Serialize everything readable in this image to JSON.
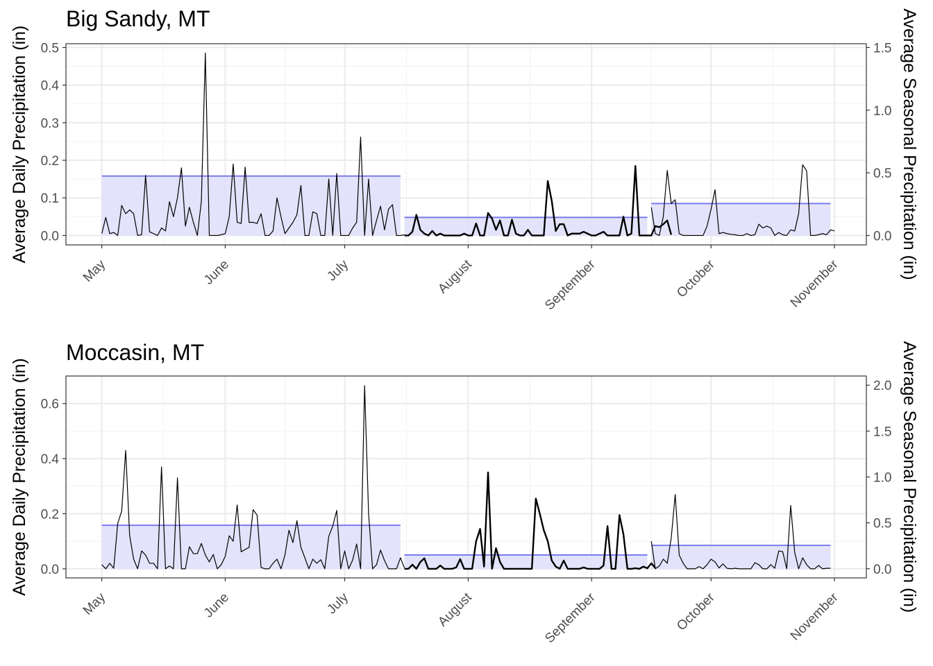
{
  "chart_data": [
    {
      "type": "line",
      "title": "Big Sandy, MT",
      "ylabel": "Average Daily Precipitation (in)",
      "y2label": "Average Seasonal Precipitation (in)",
      "ylim": [
        -0.025,
        0.51
      ],
      "y2lim": [
        -0.075,
        1.53
      ],
      "yticks": [
        0.0,
        0.1,
        0.2,
        0.3,
        0.4,
        0.5
      ],
      "y2ticks": [
        0.0,
        0.5,
        1.0,
        1.5
      ],
      "ytick_labels": [
        "0.0",
        "0.1",
        "0.2",
        "0.3",
        "0.4",
        "0.5"
      ],
      "y2tick_labels": [
        "0.0",
        "0.5",
        "1.0",
        "1.5"
      ],
      "xlim": [
        "2021-04-22",
        "2021-11-09"
      ],
      "x_breaks": [
        "2021-05-01",
        "2021-06-01",
        "2021-07-01",
        "2021-08-01",
        "2021-09-01",
        "2021-10-01",
        "2021-11-01"
      ],
      "x_labels": [
        "May",
        "June",
        "July",
        "August",
        "September",
        "October",
        "November"
      ],
      "grid": true,
      "seasons": [
        {
          "start": "2021-05-01",
          "end": "2021-07-15",
          "value": 0.158,
          "fill": "#e0e0fb",
          "stroke": "#7b7bef"
        },
        {
          "start": "2021-07-16",
          "end": "2021-09-15",
          "value": 0.048,
          "fill": "#e0e0fb",
          "stroke": "#7b7bef"
        },
        {
          "start": "2021-09-16",
          "end": "2021-10-31",
          "value": 0.085,
          "fill": "#e0e0fb",
          "stroke": "#7b7bef"
        }
      ],
      "series": [
        {
          "start": "2021-05-01",
          "width": 1.2,
          "values": [
            0.005,
            0.048,
            0.005,
            0.008,
            0.0,
            0.08,
            0.058,
            0.068,
            0.058,
            0.0,
            0.002,
            0.16,
            0.01,
            0.005,
            0.0,
            0.02,
            0.012,
            0.09,
            0.05,
            0.1,
            0.18,
            0.025,
            0.075,
            0.035,
            0.0,
            0.09,
            0.485,
            0.0,
            0.0,
            0.0,
            0.002,
            0.005,
            0.05,
            0.19,
            0.035,
            0.032,
            0.182,
            0.035,
            0.035,
            0.032,
            0.058,
            0.0,
            0.0,
            0.012,
            0.1,
            0.05,
            0.005,
            0.02,
            0.035,
            0.055,
            0.133,
            0.0,
            0.0,
            0.063,
            0.058,
            0.0,
            0.0,
            0.15,
            0.0,
            0.165,
            0.0,
            0.0,
            0.0,
            0.02,
            0.035,
            0.262,
            0.0,
            0.15,
            0.0,
            0.04,
            0.078,
            0.015,
            0.07,
            0.082,
            0.0,
            0.0,
            0.002
          ]
        },
        {
          "start": "2021-07-16",
          "width": 2.4,
          "values": [
            0.0,
            0.0,
            0.01,
            0.055,
            0.015,
            0.005,
            0.0,
            0.012,
            0.0,
            0.005,
            0.0,
            0.0,
            0.0,
            0.0,
            0.0,
            0.005,
            0.0,
            0.0,
            0.032,
            0.0,
            0.0,
            0.06,
            0.045,
            0.015,
            0.04,
            0.0,
            0.0,
            0.042,
            0.005,
            0.0,
            0.0,
            0.015,
            0.0,
            0.0,
            0.0,
            0.0,
            0.145,
            0.092,
            0.012,
            0.03,
            0.03,
            0.0,
            0.005,
            0.005,
            0.005,
            0.01,
            0.005,
            0.0,
            0.0,
            0.005,
            0.01,
            0.0,
            0.0,
            0.0,
            0.0,
            0.05,
            0.0,
            0.005,
            0.185,
            0.0,
            0.0,
            0.0,
            0.0,
            0.025,
            0.022,
            0.03,
            0.04,
            0.002
          ]
        },
        {
          "start": "2021-09-16",
          "width": 1.2,
          "values": [
            0.075,
            0.005,
            0.0,
            0.05,
            0.173,
            0.085,
            0.095,
            0.005,
            0.0,
            0.0,
            0.0,
            0.0,
            0.0,
            0.0,
            0.025,
            0.07,
            0.122,
            0.005,
            0.008,
            0.005,
            0.003,
            0.002,
            0.0,
            0.0,
            0.005,
            0.0,
            0.002,
            0.03,
            0.02,
            0.025,
            0.02,
            0.0,
            0.008,
            0.002,
            0.0,
            0.015,
            0.012,
            0.058,
            0.188,
            0.172,
            0.0,
            0.0,
            0.002,
            0.005,
            0.002,
            0.015,
            0.012
          ]
        }
      ]
    },
    {
      "type": "line",
      "title": "Moccasin, MT",
      "ylabel": "Average Daily Precipitation (in)",
      "y2label": "Average Seasonal Precipitation (in)",
      "ylim": [
        -0.033,
        0.7
      ],
      "y2lim": [
        -0.1,
        2.1
      ],
      "yticks": [
        0.0,
        0.2,
        0.4,
        0.6
      ],
      "y2ticks": [
        0.0,
        0.5,
        1.0,
        1.5,
        2.0
      ],
      "ytick_labels": [
        "0.0",
        "0.2",
        "0.4",
        "0.6"
      ],
      "y2tick_labels": [
        "0.0",
        "0.5",
        "1.0",
        "1.5",
        "2.0"
      ],
      "xlim": [
        "2021-04-22",
        "2021-11-09"
      ],
      "x_breaks": [
        "2021-05-01",
        "2021-06-01",
        "2021-07-01",
        "2021-08-01",
        "2021-09-01",
        "2021-10-01",
        "2021-11-01"
      ],
      "x_labels": [
        "May",
        "June",
        "July",
        "August",
        "September",
        "October",
        "November"
      ],
      "grid": true,
      "seasons": [
        {
          "start": "2021-05-01",
          "end": "2021-07-15",
          "value": 0.158,
          "fill": "#e0e0fb",
          "stroke": "#7b7bef"
        },
        {
          "start": "2021-07-16",
          "end": "2021-09-15",
          "value": 0.05,
          "fill": "#e0e0fb",
          "stroke": "#7b7bef"
        },
        {
          "start": "2021-09-16",
          "end": "2021-10-31",
          "value": 0.085,
          "fill": "#e0e0fb",
          "stroke": "#7b7bef"
        }
      ],
      "series": [
        {
          "start": "2021-05-01",
          "width": 1.2,
          "values": [
            0.015,
            0.0,
            0.02,
            0.002,
            0.165,
            0.21,
            0.43,
            0.12,
            0.035,
            0.0,
            0.065,
            0.05,
            0.02,
            0.02,
            0.0,
            0.37,
            0.0,
            0.01,
            0.0,
            0.33,
            0.0,
            0.0,
            0.08,
            0.055,
            0.055,
            0.092,
            0.05,
            0.025,
            0.052,
            0.0,
            0.015,
            0.045,
            0.12,
            0.1,
            0.232,
            0.062,
            0.07,
            0.078,
            0.215,
            0.195,
            0.005,
            0.0,
            0.0,
            0.02,
            0.035,
            0.0,
            0.05,
            0.14,
            0.095,
            0.175,
            0.078,
            0.04,
            0.0,
            0.035,
            0.02,
            0.033,
            0.0,
            0.118,
            0.155,
            0.212,
            0.0,
            0.065,
            0.0,
            0.032,
            0.09,
            0.0,
            0.665,
            0.2,
            0.0,
            0.015,
            0.068,
            0.03,
            0.0,
            0.0,
            0.0,
            0.04,
            0.003
          ]
        },
        {
          "start": "2021-07-16",
          "width": 2.4,
          "values": [
            0.0,
            0.0,
            0.015,
            0.0,
            0.025,
            0.038,
            0.0,
            0.0,
            0.0,
            0.012,
            0.0,
            0.0,
            0.0,
            0.005,
            0.035,
            0.0,
            0.0,
            0.0,
            0.1,
            0.145,
            0.008,
            0.35,
            0.0,
            0.075,
            0.025,
            0.0,
            0.0,
            0.0,
            0.0,
            0.0,
            0.0,
            0.0,
            0.0,
            0.255,
            0.2,
            0.14,
            0.1,
            0.03,
            0.008,
            0.0,
            0.03,
            0.0,
            0.0,
            0.0,
            0.0,
            0.005,
            0.0,
            0.0,
            0.0,
            0.0,
            0.012,
            0.155,
            0.0,
            0.0,
            0.195,
            0.125,
            0.0,
            0.0,
            0.002,
            0.0,
            0.008,
            0.002,
            0.02,
            0.003
          ]
        },
        {
          "start": "2021-09-16",
          "width": 1.2,
          "values": [
            0.1,
            0.0,
            0.01,
            0.035,
            0.02,
            0.112,
            0.27,
            0.05,
            0.02,
            0.0,
            0.0,
            0.0,
            0.008,
            0.0,
            0.015,
            0.035,
            0.025,
            0.003,
            0.018,
            0.002,
            0.0,
            0.002,
            0.0,
            0.0,
            0.0,
            0.0,
            0.022,
            0.015,
            0.0,
            0.0,
            0.015,
            0.002,
            0.065,
            0.062,
            0.0,
            0.23,
            0.06,
            0.0,
            0.04,
            0.015,
            0.0,
            0.0,
            0.012,
            0.0,
            0.002,
            0.002
          ]
        }
      ]
    }
  ]
}
